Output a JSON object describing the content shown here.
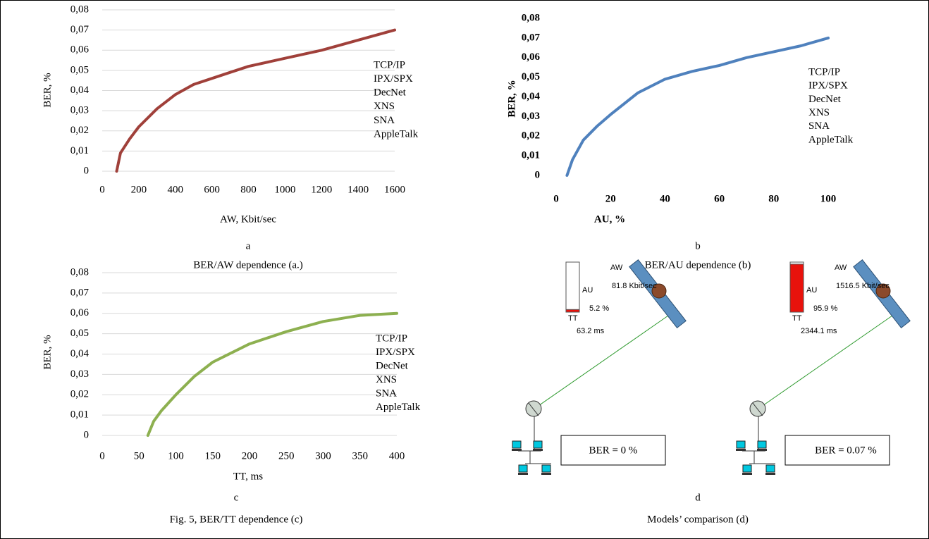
{
  "chart_data": [
    {
      "type": "line",
      "panel_label": "a",
      "caption": "BER/AW dependence (a.)",
      "x_label": "AW, Kbit/sec",
      "y_label": "BER, %",
      "x": [
        79,
        100,
        150,
        200,
        300,
        400,
        500,
        600,
        700,
        800,
        1000,
        1200,
        1400,
        1600
      ],
      "y": [
        0,
        0.009,
        0.016,
        0.022,
        0.031,
        0.038,
        0.043,
        0.046,
        0.049,
        0.052,
        0.056,
        0.06,
        0.065,
        0.07
      ],
      "color": "#a0403a",
      "xlim": [
        0,
        1600
      ],
      "ylim": [
        0,
        0.08
      ],
      "xticks": [
        0,
        200,
        400,
        600,
        800,
        1000,
        1200,
        1400,
        1600
      ],
      "yticks": [
        0,
        {
          "value": 0.01,
          "label": "0,01"
        },
        {
          "value": 0.02,
          "label": "0,02"
        },
        {
          "value": 0.03,
          "label": "0,03"
        },
        {
          "value": 0.04,
          "label": "0,04"
        },
        {
          "value": 0.05,
          "label": "0,05"
        },
        {
          "value": 0.06,
          "label": "0,06"
        },
        {
          "value": 0.07,
          "label": "0,07"
        },
        {
          "value": 0.08,
          "label": "0,08"
        }
      ],
      "grid": true,
      "bold": false,
      "legend_labels": [
        "TCP/IP",
        "IPX/SPX",
        "DecNet",
        "XNS",
        "SNA",
        "AppleTalk"
      ]
    },
    {
      "type": "line",
      "panel_label": "b",
      "caption": "BER/AU dependence (b)",
      "x_label": "AU, %",
      "y_label": "BER, %",
      "x": [
        4,
        6,
        10,
        15,
        20,
        30,
        40,
        50,
        60,
        70,
        80,
        90,
        100
      ],
      "y": [
        0,
        0.008,
        0.018,
        0.025,
        0.031,
        0.042,
        0.049,
        0.053,
        0.056,
        0.06,
        0.063,
        0.066,
        0.07
      ],
      "color": "#4f81bd",
      "xlim": [
        0,
        100
      ],
      "ylim": [
        0,
        0.08
      ],
      "xticks": [
        0,
        20,
        40,
        60,
        80,
        100
      ],
      "yticks": [
        0,
        {
          "value": 0.01,
          "label": "0,01"
        },
        {
          "value": 0.02,
          "label": "0,02"
        },
        {
          "value": 0.03,
          "label": "0,03"
        },
        {
          "value": 0.04,
          "label": "0,04"
        },
        {
          "value": 0.05,
          "label": "0,05"
        },
        {
          "value": 0.06,
          "label": "0,06"
        },
        {
          "value": 0.07,
          "label": "0,07"
        },
        {
          "value": 0.08,
          "label": "0,08"
        }
      ],
      "grid": false,
      "bold": true,
      "legend_labels": [
        "TCP/IP",
        "IPX/SPX",
        "DecNet",
        "XNS",
        "SNA",
        "AppleTalk"
      ]
    },
    {
      "type": "line",
      "panel_label": "c",
      "caption": "Fig. 5, BER/TT dependence (c)",
      "x_label": "TT, ms",
      "y_label": "BER, %",
      "x": [
        62,
        70,
        80,
        100,
        125,
        150,
        200,
        250,
        300,
        350,
        400
      ],
      "y": [
        0,
        0.007,
        0.012,
        0.02,
        0.029,
        0.036,
        0.045,
        0.051,
        0.056,
        0.059,
        0.06
      ],
      "color": "#8db050",
      "xlim": [
        0,
        400
      ],
      "ylim": [
        0,
        0.08
      ],
      "xticks": [
        0,
        50,
        100,
        150,
        200,
        250,
        300,
        350,
        400
      ],
      "yticks": [
        0,
        {
          "value": 0.01,
          "label": "0,01"
        },
        {
          "value": 0.02,
          "label": "0,02"
        },
        {
          "value": 0.03,
          "label": "0,03"
        },
        {
          "value": 0.04,
          "label": "0,04"
        },
        {
          "value": 0.05,
          "label": "0,05"
        },
        {
          "value": 0.06,
          "label": "0,06"
        },
        {
          "value": 0.07,
          "label": "0,07"
        },
        {
          "value": 0.08,
          "label": "0,08"
        }
      ],
      "grid": true,
      "bold": false,
      "legend_labels": [
        "TCP/IP",
        "IPX/SPX",
        "DecNet",
        "XNS",
        "SNA",
        "AppleTalk"
      ]
    }
  ],
  "diagram": {
    "panel_label": "d",
    "caption": "Models’ comparison (d)",
    "models": [
      {
        "aw_label": "AW",
        "aw": "81.8 Kbit/sec",
        "au_label": "AU",
        "au": {
          "value": 5.2,
          "label": "5.2 %"
        },
        "tt_label": "TT",
        "tt": "63.2 ms",
        "ber": "BER = 0 %"
      },
      {
        "aw_label": "AW",
        "aw": "1516.5 Kbit/sec",
        "au_label": "AU",
        "au": {
          "value": 95.9,
          "label": "95.9 %"
        },
        "tt_label": "TT",
        "tt": "2344.1 ms",
        "ber": "BER = 0.07 %"
      }
    ]
  }
}
